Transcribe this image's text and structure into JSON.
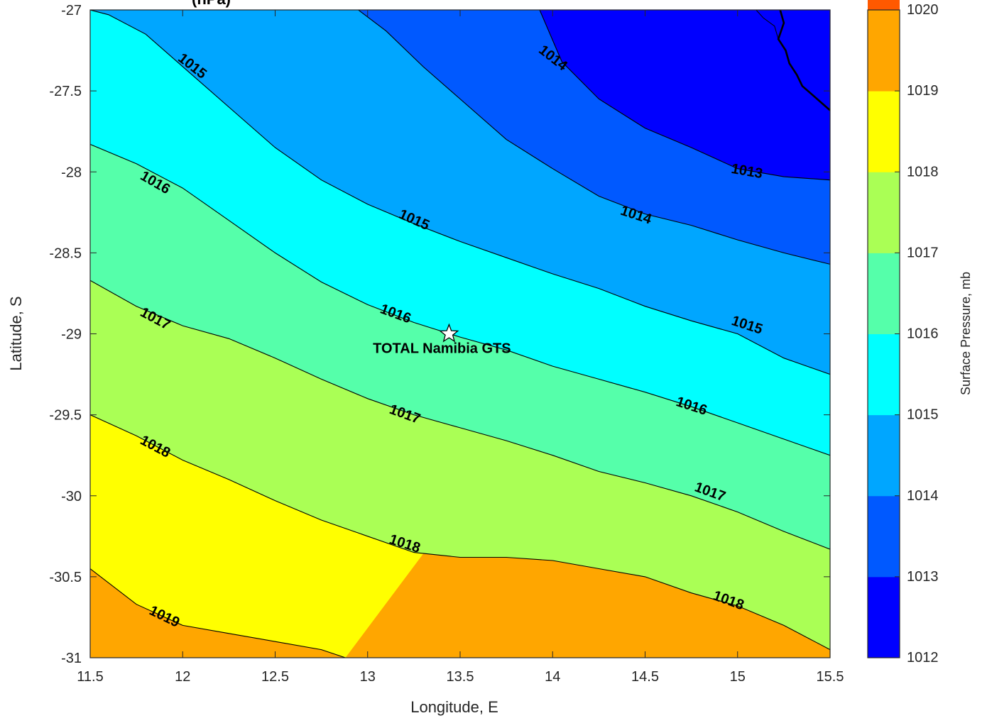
{
  "chart_data": {
    "type": "heatmap",
    "subtype": "filled-contour-map",
    "title": "(hPa)",
    "xlabel": "Longitude, E",
    "ylabel": "Latitude, S",
    "xlim": [
      11.5,
      15.5
    ],
    "ylim": [
      -31,
      -27
    ],
    "x_ticks": [
      "11.5",
      "12",
      "12.5",
      "13",
      "13.5",
      "14",
      "14.5",
      "15",
      "15.5"
    ],
    "y_ticks": [
      "-27",
      "-27.5",
      "-28",
      "-28.5",
      "-29",
      "-29.5",
      "-30",
      "-30.5",
      "-31"
    ],
    "x_tick_values": [
      11.5,
      12,
      12.5,
      13,
      13.5,
      14,
      14.5,
      15,
      15.5
    ],
    "y_tick_values": [
      -27,
      -27.5,
      -28,
      -28.5,
      -29,
      -29.5,
      -30,
      -30.5,
      -31
    ],
    "colorbar": {
      "label": "Surface Pressure, mb",
      "min": 1012,
      "max": 1020,
      "ticks": [
        "1012",
        "1013",
        "1014",
        "1015",
        "1016",
        "1017",
        "1018",
        "1019",
        "1020"
      ],
      "tick_values": [
        1012,
        1013,
        1014,
        1015,
        1016,
        1017,
        1018,
        1019,
        1020
      ],
      "colors": [
        "#0000ff",
        "#0059ff",
        "#00a6ff",
        "#00ffff",
        "#55ffaa",
        "#aaff55",
        "#ffff00",
        "#ffa600",
        "#ff5900"
      ]
    },
    "contours": [
      {
        "level": 1013,
        "points": [
          [
            15.5,
            -28.05
          ],
          [
            15.25,
            -28.03
          ],
          [
            15.0,
            -27.98
          ],
          [
            14.75,
            -27.85
          ],
          [
            14.5,
            -27.73
          ],
          [
            14.25,
            -27.55
          ],
          [
            14.05,
            -27.32
          ],
          [
            13.93,
            -27.0
          ]
        ]
      },
      {
        "level": 1014,
        "points": [
          [
            15.5,
            -28.57
          ],
          [
            15.25,
            -28.5
          ],
          [
            15.0,
            -28.42
          ],
          [
            14.75,
            -28.33
          ],
          [
            14.5,
            -28.26
          ],
          [
            14.25,
            -28.15
          ],
          [
            14.0,
            -27.98
          ],
          [
            13.75,
            -27.8
          ],
          [
            13.5,
            -27.55
          ],
          [
            13.3,
            -27.35
          ],
          [
            13.1,
            -27.13
          ],
          [
            12.95,
            -27.0
          ]
        ]
      },
      {
        "level": 1015,
        "points": [
          [
            15.5,
            -29.25
          ],
          [
            15.25,
            -29.15
          ],
          [
            15.0,
            -29.0
          ],
          [
            14.75,
            -28.92
          ],
          [
            14.5,
            -28.83
          ],
          [
            14.25,
            -28.72
          ],
          [
            14.0,
            -28.63
          ],
          [
            13.75,
            -28.53
          ],
          [
            13.5,
            -28.43
          ],
          [
            13.25,
            -28.32
          ],
          [
            13.0,
            -28.2
          ],
          [
            12.75,
            -28.05
          ],
          [
            12.5,
            -27.85
          ],
          [
            12.25,
            -27.6
          ],
          [
            12.0,
            -27.35
          ],
          [
            11.8,
            -27.15
          ],
          [
            11.6,
            -27.03
          ],
          [
            11.5,
            -27.0
          ]
        ]
      },
      {
        "level": 1016,
        "points": [
          [
            15.5,
            -29.75
          ],
          [
            15.25,
            -29.65
          ],
          [
            15.0,
            -29.55
          ],
          [
            14.75,
            -29.45
          ],
          [
            14.5,
            -29.36
          ],
          [
            14.25,
            -29.28
          ],
          [
            14.0,
            -29.2
          ],
          [
            13.75,
            -29.1
          ],
          [
            13.5,
            -29.02
          ],
          [
            13.25,
            -28.93
          ],
          [
            13.0,
            -28.82
          ],
          [
            12.75,
            -28.68
          ],
          [
            12.5,
            -28.5
          ],
          [
            12.25,
            -28.3
          ],
          [
            12.0,
            -28.1
          ],
          [
            11.75,
            -27.95
          ],
          [
            11.5,
            -27.83
          ]
        ]
      },
      {
        "level": 1017,
        "points": [
          [
            15.5,
            -30.33
          ],
          [
            15.25,
            -30.22
          ],
          [
            15.0,
            -30.1
          ],
          [
            14.75,
            -30.0
          ],
          [
            14.5,
            -29.92
          ],
          [
            14.25,
            -29.85
          ],
          [
            14.0,
            -29.75
          ],
          [
            13.75,
            -29.66
          ],
          [
            13.5,
            -29.58
          ],
          [
            13.25,
            -29.5
          ],
          [
            13.0,
            -29.4
          ],
          [
            12.75,
            -29.28
          ],
          [
            12.5,
            -29.15
          ],
          [
            12.25,
            -29.03
          ],
          [
            12.0,
            -28.95
          ],
          [
            11.75,
            -28.83
          ],
          [
            11.5,
            -28.67
          ]
        ]
      },
      {
        "level": 1018,
        "points": [
          [
            15.5,
            -30.95
          ],
          [
            15.25,
            -30.8
          ],
          [
            15.0,
            -30.68
          ],
          [
            14.75,
            -30.6
          ],
          [
            14.5,
            -30.5
          ],
          [
            14.25,
            -30.45
          ],
          [
            14.0,
            -30.4
          ],
          [
            13.75,
            -30.38
          ],
          [
            13.5,
            -30.38
          ],
          [
            13.25,
            -30.35
          ],
          [
            13.0,
            -30.25
          ],
          [
            12.75,
            -30.15
          ],
          [
            12.5,
            -30.03
          ],
          [
            12.25,
            -29.9
          ],
          [
            12.0,
            -29.78
          ],
          [
            11.75,
            -29.63
          ],
          [
            11.5,
            -29.5
          ]
        ]
      },
      {
        "level": 1019,
        "points": [
          [
            12.88,
            -31.0
          ],
          [
            12.75,
            -30.95
          ],
          [
            12.5,
            -30.9
          ],
          [
            12.25,
            -30.85
          ],
          [
            12.0,
            -30.8
          ],
          [
            11.75,
            -30.67
          ],
          [
            11.5,
            -30.45
          ]
        ]
      }
    ],
    "contour_labels": [
      {
        "text": "1013",
        "lon": 15.05,
        "lat": -28.0,
        "angle": 10
      },
      {
        "text": "1014",
        "lon": 14.0,
        "lat": -27.3,
        "angle": 38
      },
      {
        "text": "1014",
        "lon": 14.45,
        "lat": -28.27,
        "angle": 18
      },
      {
        "text": "1015",
        "lon": 12.05,
        "lat": -27.35,
        "angle": 38
      },
      {
        "text": "1015",
        "lon": 13.25,
        "lat": -28.3,
        "angle": 24
      },
      {
        "text": "1015",
        "lon": 15.05,
        "lat": -28.95,
        "angle": 18
      },
      {
        "text": "1016",
        "lon": 11.85,
        "lat": -28.07,
        "angle": 30
      },
      {
        "text": "1016",
        "lon": 13.15,
        "lat": -28.88,
        "angle": 20
      },
      {
        "text": "1016",
        "lon": 14.75,
        "lat": -29.45,
        "angle": 18
      },
      {
        "text": "1017",
        "lon": 11.85,
        "lat": -28.91,
        "angle": 28
      },
      {
        "text": "1017",
        "lon": 13.2,
        "lat": -29.5,
        "angle": 20
      },
      {
        "text": "1017",
        "lon": 14.85,
        "lat": -29.98,
        "angle": 20
      },
      {
        "text": "1018",
        "lon": 11.85,
        "lat": -29.7,
        "angle": 28
      },
      {
        "text": "1018",
        "lon": 13.2,
        "lat": -30.3,
        "angle": 18
      },
      {
        "text": "1018",
        "lon": 14.95,
        "lat": -30.65,
        "angle": 20
      },
      {
        "text": "1019",
        "lon": 11.9,
        "lat": -30.75,
        "angle": 26
      }
    ],
    "coastline": [
      [
        15.23,
        -27.0
      ],
      [
        15.25,
        -27.08
      ],
      [
        15.22,
        -27.18
      ],
      [
        15.26,
        -27.25
      ],
      [
        15.28,
        -27.33
      ],
      [
        15.32,
        -27.4
      ],
      [
        15.35,
        -27.47
      ],
      [
        15.4,
        -27.52
      ],
      [
        15.45,
        -27.57
      ],
      [
        15.5,
        -27.62
      ]
    ],
    "coastline_branch": [
      [
        15.1,
        -27.0
      ],
      [
        15.14,
        -27.05
      ],
      [
        15.2,
        -27.1
      ],
      [
        15.22,
        -27.18
      ]
    ],
    "site": {
      "name": "TOTAL Namibia GTS",
      "lon": 13.44,
      "lat": -29.0
    }
  }
}
